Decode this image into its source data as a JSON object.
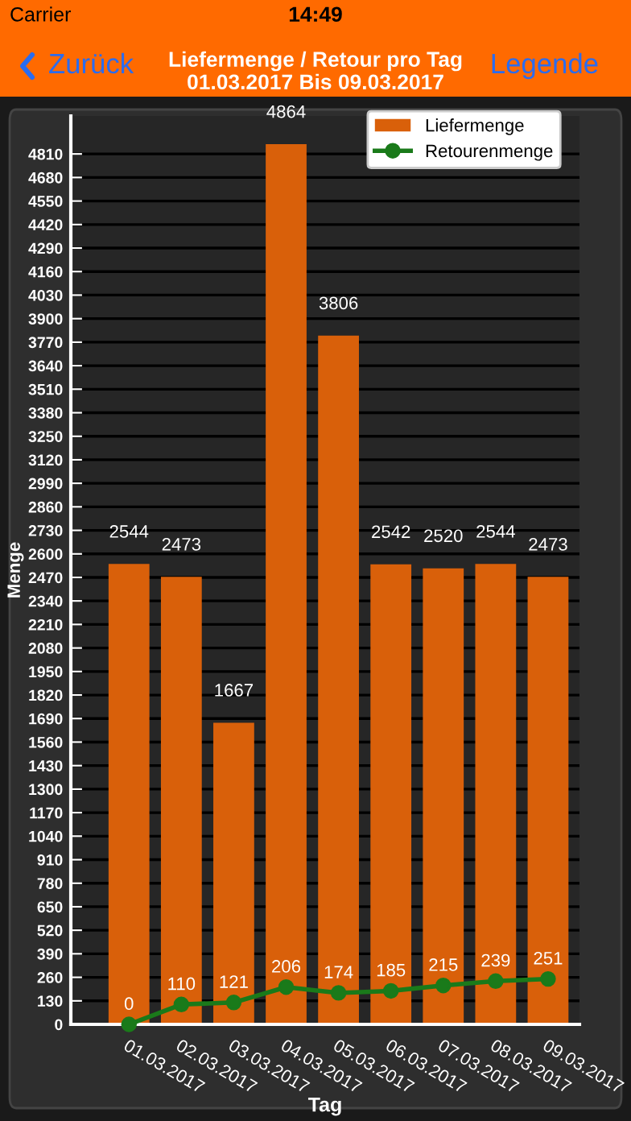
{
  "chart_data": {
    "type": "bar",
    "title": "Liefermenge / Retour pro Tag",
    "subtitle": "01.03.2017 Bis 09.03.2017",
    "xlabel": "Tag",
    "ylabel": "Menge",
    "annotations": [
      "Carrier",
      "14:49",
      "Zurück",
      "Legende"
    ],
    "categories": [
      "01.03.2017",
      "02.03.2017",
      "03.03.2017",
      "04.03.2017",
      "05.03.2017",
      "06.03.2017",
      "07.03.2017",
      "08.03.2017",
      "09.03.2017"
    ],
    "series": [
      {
        "name": "Liefermenge",
        "color": "#d9600a",
        "values": [
          2544,
          2473,
          1667,
          4864,
          3806,
          2542,
          2520,
          2544,
          2473
        ]
      },
      {
        "name": "Retourenmenge",
        "type": "line",
        "color": "#1a7a1a",
        "values": [
          0,
          110,
          121,
          206,
          174,
          185,
          215,
          239,
          251
        ]
      }
    ],
    "ylim": [
      0,
      5020
    ],
    "yticks": [
      0,
      130,
      260,
      390,
      520,
      650,
      780,
      910,
      1040,
      1170,
      1300,
      1430,
      1560,
      1690,
      1820,
      1950,
      2080,
      2210,
      2340,
      2470,
      2600,
      2730,
      2860,
      2990,
      3120,
      3250,
      3380,
      3510,
      3640,
      3770,
      3900,
      4030,
      4160,
      4290,
      4420,
      4550,
      4680,
      4810
    ],
    "grid": "y",
    "legend": "top right",
    "marker": "circle",
    "line_style": "solid",
    "data_labels": true
  }
}
